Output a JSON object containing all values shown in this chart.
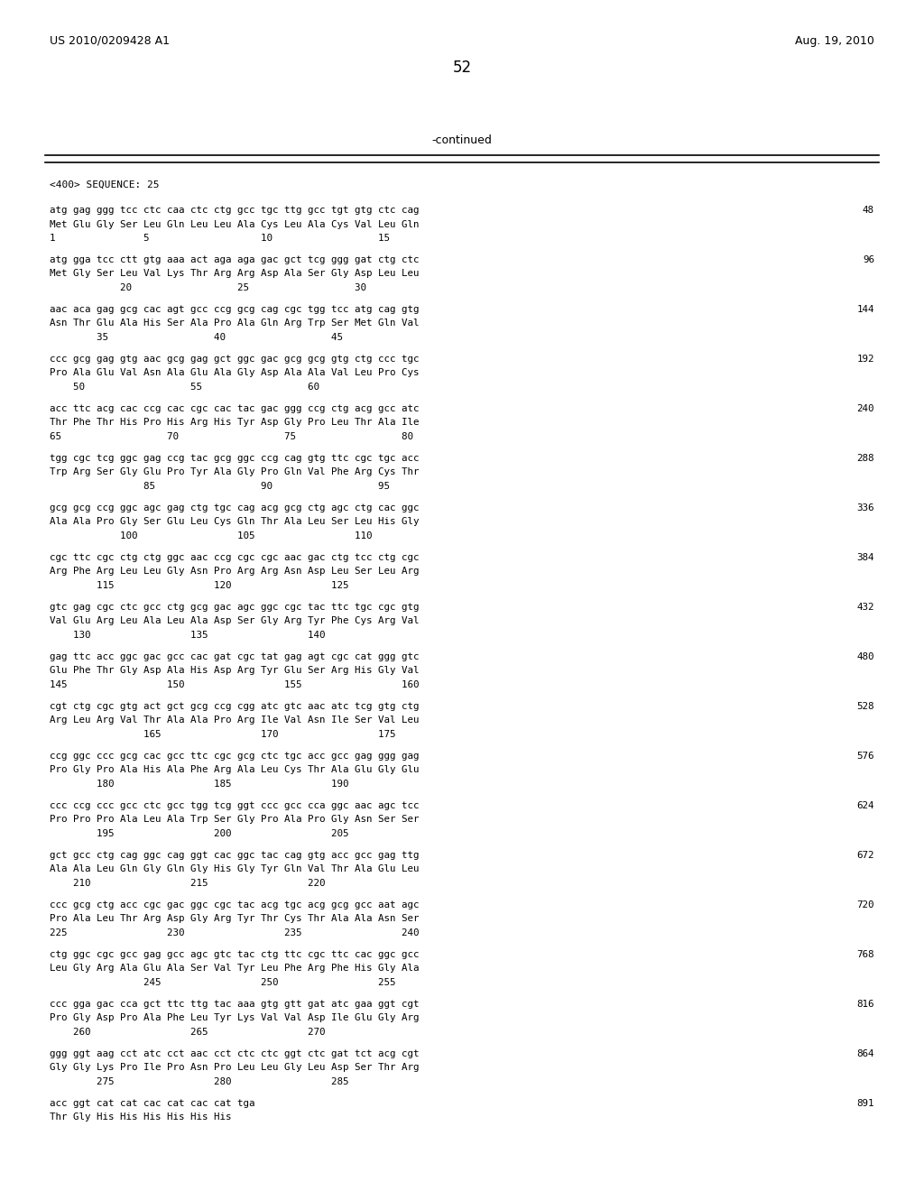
{
  "bg_color": "#ffffff",
  "header_left": "US 2010/0209428 A1",
  "header_right": "Aug. 19, 2010",
  "page_number": "52",
  "continued_label": "-continued",
  "section_label": "<400> SEQUENCE: 25",
  "content_lines": [
    [
      "atg gag ggg tcc ctc caa ctc ctg gcc tgc ttg gcc tgt gtg ctc cag",
      "48"
    ],
    [
      "Met Glu Gly Ser Leu Gln Leu Leu Ala Cys Leu Ala Cys Val Leu Gln",
      ""
    ],
    [
      "1               5                   10                  15",
      ""
    ],
    [
      "",
      ""
    ],
    [
      "atg gga tcc ctt gtg aaa act aga aga gac gct tcg ggg gat ctg ctc",
      "96"
    ],
    [
      "Met Gly Ser Leu Val Lys Thr Arg Arg Asp Ala Ser Gly Asp Leu Leu",
      ""
    ],
    [
      "            20                  25                  30",
      ""
    ],
    [
      "",
      ""
    ],
    [
      "aac aca gag gcg cac agt gcc ccg gcg cag cgc tgg tcc atg cag gtg",
      "144"
    ],
    [
      "Asn Thr Glu Ala His Ser Ala Pro Ala Gln Arg Trp Ser Met Gln Val",
      ""
    ],
    [
      "        35                  40                  45",
      ""
    ],
    [
      "",
      ""
    ],
    [
      "ccc gcg gag gtg aac gcg gag gct ggc gac gcg gcg gtg ctg ccc tgc",
      "192"
    ],
    [
      "Pro Ala Glu Val Asn Ala Glu Ala Gly Asp Ala Ala Val Leu Pro Cys",
      ""
    ],
    [
      "    50                  55                  60",
      ""
    ],
    [
      "",
      ""
    ],
    [
      "acc ttc acg cac ccg cac cgc cac tac gac ggg ccg ctg acg gcc atc",
      "240"
    ],
    [
      "Thr Phe Thr His Pro His Arg His Tyr Asp Gly Pro Leu Thr Ala Ile",
      ""
    ],
    [
      "65                  70                  75                  80",
      ""
    ],
    [
      "",
      ""
    ],
    [
      "tgg cgc tcg ggc gag ccg tac gcg ggc ccg cag gtg ttc cgc tgc acc",
      "288"
    ],
    [
      "Trp Arg Ser Gly Glu Pro Tyr Ala Gly Pro Gln Val Phe Arg Cys Thr",
      ""
    ],
    [
      "                85                  90                  95",
      ""
    ],
    [
      "",
      ""
    ],
    [
      "gcg gcg ccg ggc agc gag ctg tgc cag acg gcg ctg agc ctg cac ggc",
      "336"
    ],
    [
      "Ala Ala Pro Gly Ser Glu Leu Cys Gln Thr Ala Leu Ser Leu His Gly",
      ""
    ],
    [
      "            100                 105                 110",
      ""
    ],
    [
      "",
      ""
    ],
    [
      "cgc ttc cgc ctg ctg ggc aac ccg cgc cgc aac gac ctg tcc ctg cgc",
      "384"
    ],
    [
      "Arg Phe Arg Leu Leu Gly Asn Pro Arg Arg Asn Asp Leu Ser Leu Arg",
      ""
    ],
    [
      "        115                 120                 125",
      ""
    ],
    [
      "",
      ""
    ],
    [
      "gtc gag cgc ctc gcc ctg gcg gac agc ggc cgc tac ttc tgc cgc gtg",
      "432"
    ],
    [
      "Val Glu Arg Leu Ala Leu Ala Asp Ser Gly Arg Tyr Phe Cys Arg Val",
      ""
    ],
    [
      "    130                 135                 140",
      ""
    ],
    [
      "",
      ""
    ],
    [
      "gag ttc acc ggc gac gcc cac gat cgc tat gag agt cgc cat ggg gtc",
      "480"
    ],
    [
      "Glu Phe Thr Gly Asp Ala His Asp Arg Tyr Glu Ser Arg His Gly Val",
      ""
    ],
    [
      "145                 150                 155                 160",
      ""
    ],
    [
      "",
      ""
    ],
    [
      "cgt ctg cgc gtg act gct gcg ccg cgg atc gtc aac atc tcg gtg ctg",
      "528"
    ],
    [
      "Arg Leu Arg Val Thr Ala Ala Pro Arg Ile Val Asn Ile Ser Val Leu",
      ""
    ],
    [
      "                165                 170                 175",
      ""
    ],
    [
      "",
      ""
    ],
    [
      "ccg ggc ccc gcg cac gcc ttc cgc gcg ctc tgc acc gcc gag ggg gag",
      "576"
    ],
    [
      "Pro Gly Pro Ala His Ala Phe Arg Ala Leu Cys Thr Ala Glu Gly Glu",
      ""
    ],
    [
      "        180                 185                 190",
      ""
    ],
    [
      "",
      ""
    ],
    [
      "ccc ccg ccc gcc ctc gcc tgg tcg ggt ccc gcc cca ggc aac agc tcc",
      "624"
    ],
    [
      "Pro Pro Pro Ala Leu Ala Trp Ser Gly Pro Ala Pro Gly Asn Ser Ser",
      ""
    ],
    [
      "        195                 200                 205",
      ""
    ],
    [
      "",
      ""
    ],
    [
      "gct gcc ctg cag ggc cag ggt cac ggc tac cag gtg acc gcc gag ttg",
      "672"
    ],
    [
      "Ala Ala Leu Gln Gly Gln Gly His Gly Tyr Gln Val Thr Ala Glu Leu",
      ""
    ],
    [
      "    210                 215                 220",
      ""
    ],
    [
      "",
      ""
    ],
    [
      "ccc gcg ctg acc cgc gac ggc cgc tac acg tgc acg gcg gcc aat agc",
      "720"
    ],
    [
      "Pro Ala Leu Thr Arg Asp Gly Arg Tyr Thr Cys Thr Ala Ala Asn Ser",
      ""
    ],
    [
      "225                 230                 235                 240",
      ""
    ],
    [
      "",
      ""
    ],
    [
      "ctg ggc cgc gcc gag gcc agc gtc tac ctg ttc cgc ttc cac ggc gcc",
      "768"
    ],
    [
      "Leu Gly Arg Ala Glu Ala Ser Val Tyr Leu Phe Arg Phe His Gly Ala",
      ""
    ],
    [
      "                245                 250                 255",
      ""
    ],
    [
      "",
      ""
    ],
    [
      "ccc gga gac cca gct ttc ttg tac aaa gtg gtt gat atc gaa ggt cgt",
      "816"
    ],
    [
      "Pro Gly Asp Pro Ala Phe Leu Tyr Lys Val Val Asp Ile Glu Gly Arg",
      ""
    ],
    [
      "    260                 265                 270",
      ""
    ],
    [
      "",
      ""
    ],
    [
      "ggg ggt aag cct atc cct aac cct ctc ctc ggt ctc gat tct acg cgt",
      "864"
    ],
    [
      "Gly Gly Lys Pro Ile Pro Asn Pro Leu Leu Gly Leu Asp Ser Thr Arg",
      ""
    ],
    [
      "        275                 280                 285",
      ""
    ],
    [
      "",
      ""
    ],
    [
      "acc ggt cat cat cac cat cac cat tga",
      "891"
    ],
    [
      "Thr Gly His His His His His His",
      ""
    ]
  ]
}
